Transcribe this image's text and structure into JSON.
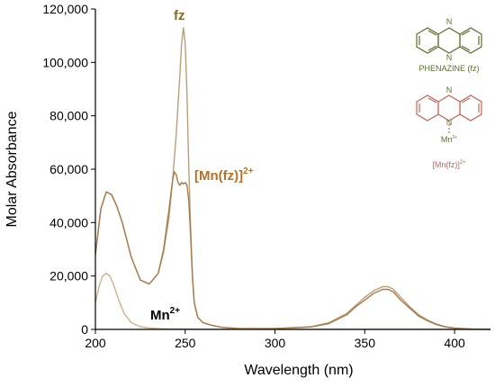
{
  "chart_data": {
    "type": "line",
    "title": "",
    "xlabel": "Wavelength (nm)",
    "ylabel": "Molar Absorbance",
    "xlim": [
      200,
      420
    ],
    "ylim": [
      0,
      120000
    ],
    "grid": false,
    "x_ticks": [
      200,
      250,
      300,
      350,
      400
    ],
    "x_tick_labels": [
      "200",
      "250",
      "300",
      "350",
      "400"
    ],
    "y_ticks": [
      0,
      20000,
      40000,
      60000,
      80000,
      100000,
      120000
    ],
    "y_tick_labels": [
      "0",
      "20,000",
      "40,000",
      "60,000",
      "80,000",
      "100,000",
      "120,000"
    ],
    "series": [
      {
        "name": "fz",
        "color": "#b5a17a",
        "x": [
          200,
          203,
          206,
          209,
          212,
          215,
          220,
          225,
          230,
          235,
          238,
          241,
          243,
          245,
          247,
          248,
          249,
          250,
          251,
          252,
          253,
          254,
          255,
          257,
          260,
          265,
          270,
          280,
          300,
          320,
          330,
          340,
          345,
          350,
          355,
          360,
          363,
          366,
          370,
          375,
          380,
          385,
          390,
          395,
          400,
          405,
          410,
          415,
          420
        ],
        "y": [
          28000,
          45000,
          51500,
          50500,
          46000,
          40000,
          27000,
          18500,
          17000,
          21000,
          29000,
          42000,
          56000,
          73000,
          95000,
          107000,
          113000,
          107000,
          88000,
          60000,
          38000,
          20000,
          10000,
          4500,
          2500,
          1500,
          800,
          300,
          300,
          1000,
          2500,
          6000,
          9000,
          12000,
          14500,
          16000,
          16000,
          15000,
          12000,
          8500,
          5500,
          3500,
          2000,
          1000,
          500,
          300,
          150,
          80,
          50
        ]
      },
      {
        "name": "[Mn(fz)]2+",
        "color": "#a77a4a",
        "x": [
          200,
          203,
          206,
          209,
          212,
          215,
          220,
          225,
          230,
          235,
          238,
          241,
          243,
          244,
          245,
          246,
          247,
          248,
          249,
          250,
          251,
          252,
          253,
          254,
          255,
          257,
          260,
          265,
          270,
          280,
          300,
          320,
          330,
          340,
          345,
          350,
          355,
          360,
          363,
          366,
          370,
          375,
          380,
          385,
          390,
          395,
          400,
          405,
          410,
          415,
          420
        ],
        "y": [
          28000,
          45000,
          51500,
          50500,
          46000,
          40000,
          27000,
          18500,
          17000,
          21000,
          30000,
          45000,
          56000,
          59000,
          58000,
          55000,
          54000,
          55000,
          54500,
          55000,
          54000,
          48000,
          35000,
          20000,
          10000,
          4500,
          2500,
          1500,
          800,
          300,
          300,
          900,
          2200,
          5500,
          8500,
          11000,
          13500,
          15000,
          15000,
          14000,
          11000,
          8000,
          5000,
          3200,
          1800,
          900,
          450,
          250,
          130,
          70,
          40
        ]
      },
      {
        "name": "Mn2+",
        "color": "#c8b48c",
        "x": [
          200,
          202,
          204,
          206,
          208,
          210,
          213,
          216,
          220,
          225,
          230,
          235,
          240,
          245,
          250,
          255,
          260,
          280,
          300,
          350,
          400,
          420
        ],
        "y": [
          10000,
          16000,
          20000,
          21000,
          20000,
          17000,
          11000,
          6000,
          2500,
          1000,
          500,
          300,
          200,
          150,
          120,
          100,
          80,
          60,
          40,
          30,
          20,
          10
        ]
      }
    ],
    "annotations": [
      {
        "text": "fz",
        "color": "#8a6a1e"
      },
      {
        "text": "[Mn(fz)]",
        "sup": "2+",
        "color": "#b5702a"
      },
      {
        "text": "Mn",
        "sup": "2+",
        "color": "#000000"
      }
    ],
    "inset": {
      "phenazine_label": "PHENAZINE (fz)",
      "complex_label": "[Mn(fz)]",
      "complex_sup": "2+",
      "n_label": "N",
      "mn_label": "Mn",
      "mn_sup": "2+",
      "phenazine_color": "#5a6e2a",
      "complex_color": "#c0665a"
    }
  }
}
